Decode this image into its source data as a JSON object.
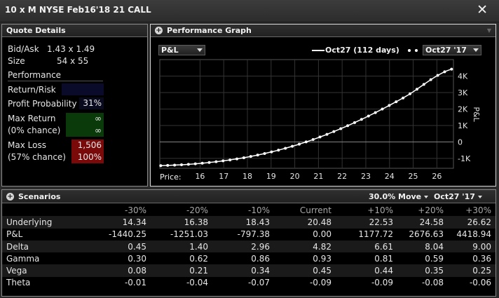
{
  "window": {
    "title": "10 x M NYSE Feb16'18 21 CALL"
  },
  "quote": {
    "title": "Quote Details",
    "bid_ask_label": "Bid/Ask",
    "bid_ask_value": "1.43 x 1.49",
    "size_label": "Size",
    "size_value": "54 x 55",
    "performance_label": "Performance",
    "return_risk_label": "Return/Risk",
    "return_risk_value": "",
    "profit_prob_label": "Profit Probability",
    "profit_prob_value": "31%",
    "max_return_label": "Max Return",
    "max_return_sub": "(0% chance)",
    "max_return_value": "∞",
    "max_return_value2": "∞",
    "max_loss_label": "Max Loss",
    "max_loss_sub": "(57% chance)",
    "max_loss_value": "1,506",
    "max_loss_value2": "100%",
    "colors": {
      "return_bg": "#0a3a0a",
      "loss_bg": "#7a0a0a",
      "rr_bg": "#0a0a2a"
    }
  },
  "graph": {
    "title": "Performance Graph",
    "metric_select": "P&L",
    "legend_line": "Oct27 (112 days)",
    "date_select": "Oct27 '17"
  },
  "chart_data": {
    "type": "line",
    "xlabel": "Price:",
    "ylabel": "P&L",
    "x_ticks": [
      "16",
      "17",
      "18",
      "19",
      "20",
      "21",
      "22",
      "23",
      "24",
      "25",
      "26"
    ],
    "y_ticks": [
      "4K",
      "3K",
      "2K",
      "1K",
      "0",
      "-1K"
    ],
    "y_tick_values": [
      4000,
      3000,
      2000,
      1000,
      0,
      -1000
    ],
    "xlim": [
      14.3,
      26.7
    ],
    "ylim": [
      -1600,
      5000
    ],
    "series": [
      {
        "x": [
          14.34,
          16.38,
          18.43,
          20.48,
          22.53,
          24.58,
          26.62
        ],
        "y": [
          -1440.25,
          -1251.03,
          -797.38,
          0.0,
          1177.72,
          2676.63,
          4418.94
        ]
      }
    ]
  },
  "scenarios": {
    "title": "Scenarios",
    "move_select": "30.0% Move",
    "date_select": "Oct27 '17",
    "columns": [
      "-30%",
      "-20%",
      "-10%",
      "Current",
      "+10%",
      "+20%",
      "+30%"
    ],
    "rows": [
      {
        "label": "Underlying",
        "values": [
          "14.34",
          "16.38",
          "18.43",
          "20.48",
          "22.53",
          "24.58",
          "26.62"
        ]
      },
      {
        "label": "P&L",
        "values": [
          "-1440.25",
          "-1251.03",
          "-797.38",
          "0.00",
          "1177.72",
          "2676.63",
          "4418.94"
        ]
      },
      {
        "label": "Delta",
        "values": [
          "0.45",
          "1.40",
          "2.96",
          "4.82",
          "6.61",
          "8.04",
          "9.00"
        ]
      },
      {
        "label": "Gamma",
        "values": [
          "0.30",
          "0.62",
          "0.86",
          "0.93",
          "0.81",
          "0.59",
          "0.36"
        ]
      },
      {
        "label": "Vega",
        "values": [
          "0.08",
          "0.21",
          "0.34",
          "0.45",
          "0.44",
          "0.35",
          "0.25"
        ]
      },
      {
        "label": "Theta",
        "values": [
          "-0.01",
          "-0.04",
          "-0.07",
          "-0.09",
          "-0.09",
          "-0.08",
          "-0.06"
        ]
      }
    ]
  }
}
